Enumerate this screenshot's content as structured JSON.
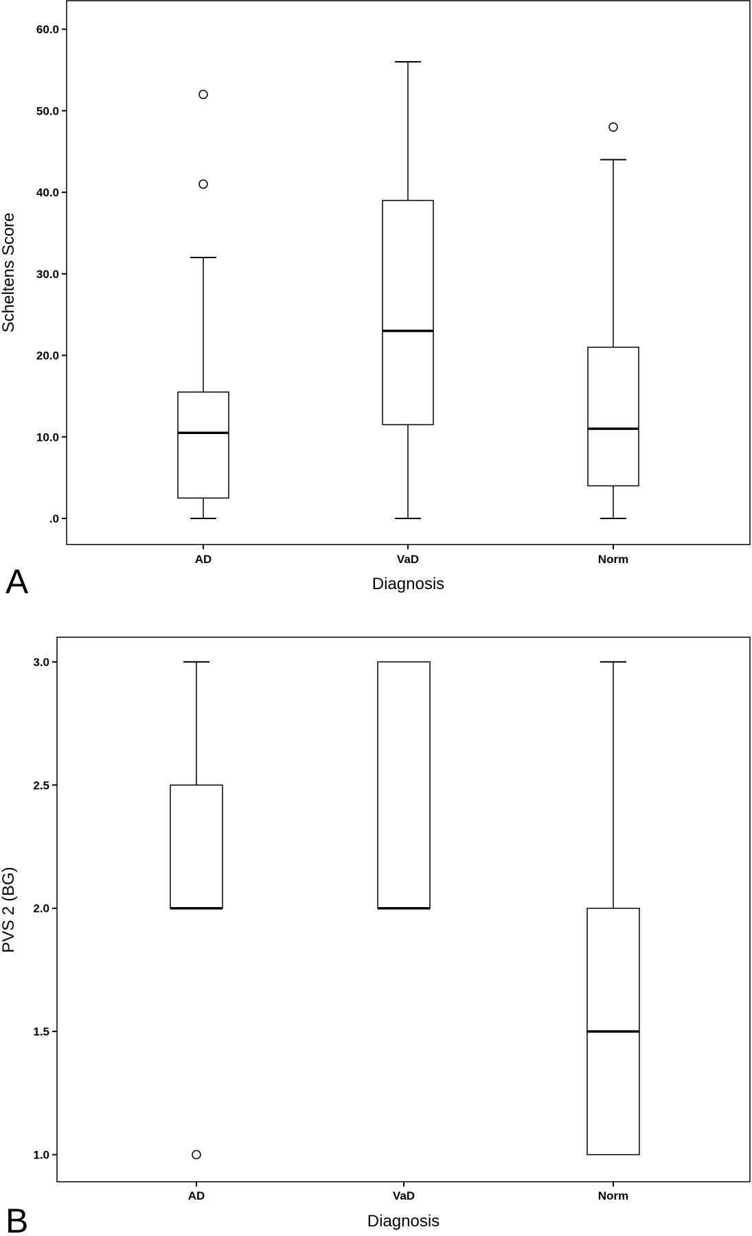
{
  "chart_data": [
    {
      "type": "box",
      "panel_label": "A",
      "xlabel": "Diagnosis",
      "ylabel": "Scheltens Score",
      "categories": [
        "AD",
        "VaD",
        "Norm"
      ],
      "yticks": [
        ".0",
        "10.0",
        "20.0",
        "30.0",
        "40.0",
        "50.0",
        "60.0"
      ],
      "ytick_values": [
        0,
        10,
        20,
        30,
        40,
        50,
        60
      ],
      "ylim": [
        -3.2,
        63.5
      ],
      "grid": false,
      "boxes": [
        {
          "category": "AD",
          "whisker_low": 0,
          "q1": 2.5,
          "median": 10.5,
          "q3": 15.5,
          "whisker_high": 32,
          "outliers": [
            41,
            52
          ]
        },
        {
          "category": "VaD",
          "whisker_low": 0,
          "q1": 11.5,
          "median": 23,
          "q3": 39,
          "whisker_high": 56,
          "outliers": []
        },
        {
          "category": "Norm",
          "whisker_low": 0,
          "q1": 4,
          "median": 11,
          "q3": 21,
          "whisker_high": 44,
          "outliers": [
            48
          ]
        }
      ]
    },
    {
      "type": "box",
      "panel_label": "B",
      "xlabel": "Diagnosis",
      "ylabel": "PVS 2 (BG)",
      "categories": [
        "AD",
        "VaD",
        "Norm"
      ],
      "yticks": [
        "1.0",
        "1.5",
        "2.0",
        "2.5",
        "3.0"
      ],
      "ytick_values": [
        1.0,
        1.5,
        2.0,
        2.5,
        3.0
      ],
      "ylim": [
        0.89,
        3.1
      ],
      "grid": false,
      "boxes": [
        {
          "category": "AD",
          "whisker_low": 2,
          "q1": 2,
          "median": 2,
          "q3": 2.5,
          "whisker_high": 3,
          "outliers": [
            1
          ]
        },
        {
          "category": "VaD",
          "whisker_low": 2,
          "q1": 2,
          "median": 2,
          "q3": 3,
          "whisker_high": 3,
          "outliers": []
        },
        {
          "category": "Norm",
          "whisker_low": 1,
          "q1": 1,
          "median": 1.5,
          "q3": 2,
          "whisker_high": 3,
          "outliers": []
        }
      ]
    }
  ]
}
